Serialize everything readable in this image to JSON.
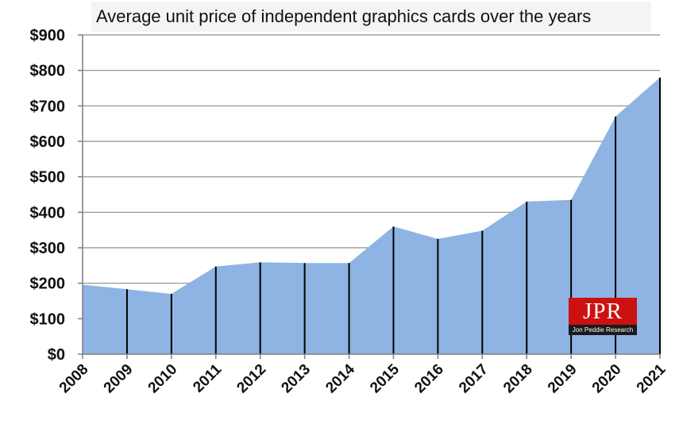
{
  "chart_data": {
    "type": "area",
    "title": "Average unit price of independent graphics cards over the years",
    "xlabel": "",
    "ylabel": "",
    "categories": [
      "2008",
      "2009",
      "2010",
      "2011",
      "2012",
      "2013",
      "2014",
      "2015",
      "2016",
      "2017",
      "2018",
      "2019",
      "2020",
      "2021"
    ],
    "values": [
      196,
      183,
      170,
      247,
      259,
      257,
      257,
      360,
      325,
      348,
      430,
      435,
      670,
      780
    ],
    "ylim": [
      0,
      900
    ],
    "yticks": [
      0,
      100,
      200,
      300,
      400,
      500,
      600,
      700,
      800,
      900
    ],
    "ytick_labels": [
      "$0",
      "$100",
      "$200",
      "$300",
      "$400",
      "$500",
      "$600",
      "$700",
      "$800",
      "$900"
    ],
    "grid": true,
    "fill_color": "#8db4e2",
    "drop_line_color": "#000000",
    "grid_color": "#8c8c8c"
  },
  "logo": {
    "mark": "JPR",
    "subtitle": "Jon Peddie Research",
    "color": "#cc1111"
  }
}
